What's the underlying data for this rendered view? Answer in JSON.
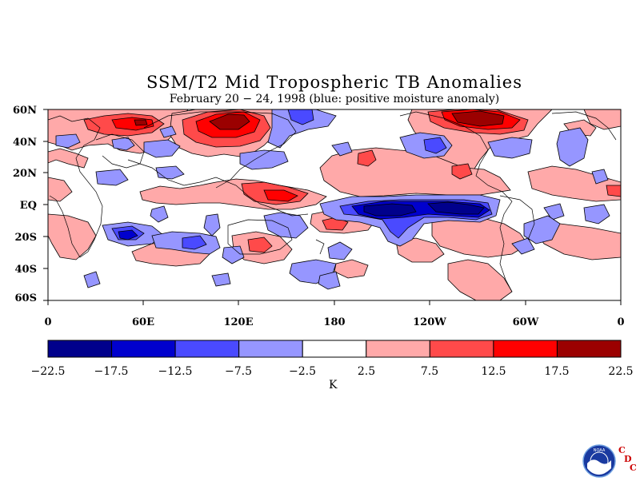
{
  "title": "SSM/T2 Mid Tropospheric TB Anomalies",
  "subtitle": "February 20 − 24, 1998 (blue: positive moisture anomaly)",
  "lat_labels": [
    "60N",
    "40N",
    "20N",
    "EQ",
    "20S",
    "40S",
    "60S"
  ],
  "lon_labels": [
    "0",
    "60E",
    "120E",
    "180",
    "120W",
    "60W",
    "0"
  ],
  "colorbar": {
    "ticks": [
      "−22.5",
      "−17.5",
      "−12.5",
      "−7.5",
      "−2.5",
      "2.5",
      "7.5",
      "12.5",
      "17.5",
      "22.5"
    ],
    "colors": [
      "#00008c",
      "#0000cd",
      "#4a4aff",
      "#9696ff",
      "#ffffff",
      "#ffa9a9",
      "#ff4a4a",
      "#ff0000",
      "#9b0000"
    ],
    "unit": "K"
  },
  "logo": {
    "name": "noaa-logo",
    "text": "NOAA",
    "letters": [
      "C",
      "D",
      "C"
    ]
  },
  "colors": {
    "strong_pos": "#9b0000",
    "red": "#ff0000",
    "mid_red": "#ff4a4a",
    "pink": "#ffa9a9",
    "light_blue": "#9696ff",
    "mid_blue": "#4a4aff",
    "blue": "#0000cd",
    "navy": "#00008c"
  }
}
